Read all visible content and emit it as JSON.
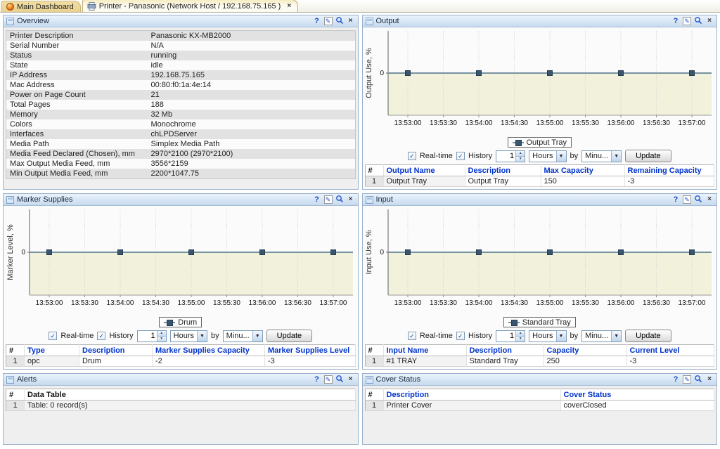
{
  "icons": {
    "help": "?",
    "edit": "✎",
    "close": "×",
    "tab_close": "×",
    "check": "✓",
    "chevron_down": "▼",
    "spinner_up": "▲",
    "spinner_down": "▼"
  },
  "colors": {
    "panel_header_top": "#eaf3fc",
    "panel_header_bottom": "#c7daee",
    "table_header_text": "#0033cc",
    "chart_fill": "#f2f1dc",
    "chart_line": "#76929f",
    "chart_marker": "#3a566f",
    "tab_active_bg": "#fdfcf4"
  },
  "tab_bar": {
    "tabs": [
      {
        "label": "Main Dashboard",
        "active": false
      },
      {
        "label": "Printer  - Panasonic (Network Host / 192.168.75.165 )",
        "active": true
      }
    ]
  },
  "chart_controls": {
    "realtime_label": "Real-time",
    "history_label": "History",
    "history_value": "1",
    "unit_value": "Hours",
    "by_label": "by",
    "interval_value": "Minu...",
    "update_label": "Update"
  },
  "panels": {
    "overview": {
      "title": "Overview",
      "rows": [
        {
          "label": "Printer Description",
          "value": "Panasonic KX-MB2000"
        },
        {
          "label": "Serial Number",
          "value": "N/A"
        },
        {
          "label": "Status",
          "value": "running"
        },
        {
          "label": "State",
          "value": "idle"
        },
        {
          "label": "IP Address",
          "value": "192.168.75.165"
        },
        {
          "label": "Mac Address",
          "value": "00:80:f0:1a:4e:14"
        },
        {
          "label": "Power on Page Count",
          "value": "21"
        },
        {
          "label": "Total Pages",
          "value": "188"
        },
        {
          "label": "Memory",
          "value": "32 Mb"
        },
        {
          "label": "Colors",
          "value": "Monochrome"
        },
        {
          "label": "Interfaces",
          "value": "chLPDServer"
        },
        {
          "label": "Media Path",
          "value": "Simplex Media Path"
        },
        {
          "label": "Media Feed Declared (Chosen), mm",
          "value": "2970*2100 (2970*2100)"
        },
        {
          "label": "Max Output Media Feed, mm",
          "value": "3556*2159"
        },
        {
          "label": "Min Output Media Feed, mm",
          "value": "2200*1047.75"
        }
      ]
    },
    "output": {
      "title": "Output",
      "table": {
        "headers": [
          "#",
          "Output Name",
          "Description",
          "Max Capacity",
          "Remaining Capacity"
        ],
        "rows": [
          [
            "1",
            "Output Tray",
            "Output Tray",
            "150",
            "-3"
          ]
        ]
      }
    },
    "marker_supplies": {
      "title": "Marker Supplies",
      "table": {
        "headers": [
          "#",
          "Type",
          "Description",
          "Marker Supplies Capacity",
          "Marker Supplies Level"
        ],
        "rows": [
          [
            "1",
            "opc",
            "Drum",
            "-2",
            "-3"
          ]
        ]
      }
    },
    "input": {
      "title": "Input",
      "table": {
        "headers": [
          "#",
          "Input Name",
          "Description",
          "Capacity",
          "Current Level"
        ],
        "rows": [
          [
            "1",
            "#1 TRAY",
            "Standard Tray",
            "250",
            "-3"
          ]
        ]
      }
    },
    "alerts": {
      "title": "Alerts",
      "table": {
        "headers": [
          "#",
          "Data Table"
        ],
        "rows": [
          [
            "1",
            "Table: 0 record(s)"
          ]
        ]
      }
    },
    "cover_status": {
      "title": "Cover Status",
      "table": {
        "headers": [
          "#",
          "Description",
          "Cover Status"
        ],
        "rows": [
          [
            "1",
            "Printer Cover",
            "coverClosed"
          ]
        ]
      }
    }
  },
  "chart_data": [
    {
      "type": "line",
      "panel": "Output",
      "ylabel": "Output Use, %",
      "legend": "Output Tray",
      "xticks": [
        "13:53:00",
        "13:53:30",
        "13:54:00",
        "13:54:30",
        "13:55:00",
        "13:55:30",
        "13:56:00",
        "13:56:30",
        "13:57:00"
      ],
      "yticks": [
        0
      ],
      "grid": "vertical-dotted",
      "legend_position": "bottom",
      "series": [
        {
          "name": "Output Tray",
          "x": [
            "13:53:00",
            "13:54:00",
            "13:55:00",
            "13:56:00",
            "13:57:00"
          ],
          "values": [
            0,
            0,
            0,
            0,
            0
          ]
        }
      ]
    },
    {
      "type": "line",
      "panel": "Marker Supplies",
      "ylabel": "Marker Level, %",
      "legend": "Drum",
      "xticks": [
        "13:53:00",
        "13:53:30",
        "13:54:00",
        "13:54:30",
        "13:55:00",
        "13:55:30",
        "13:56:00",
        "13:56:30",
        "13:57:00"
      ],
      "yticks": [
        0
      ],
      "grid": "vertical-dotted",
      "legend_position": "bottom",
      "series": [
        {
          "name": "Drum",
          "x": [
            "13:53:00",
            "13:54:00",
            "13:55:00",
            "13:56:00",
            "13:57:00"
          ],
          "values": [
            0,
            0,
            0,
            0,
            0
          ]
        }
      ]
    },
    {
      "type": "line",
      "panel": "Input",
      "ylabel": "Input Use, %",
      "legend": "Standard Tray",
      "xticks": [
        "13:53:00",
        "13:53:30",
        "13:54:00",
        "13:54:30",
        "13:55:00",
        "13:55:30",
        "13:56:00",
        "13:56:30",
        "13:57:00"
      ],
      "yticks": [
        0
      ],
      "grid": "vertical-dotted",
      "legend_position": "bottom",
      "series": [
        {
          "name": "Standard Tray",
          "x": [
            "13:53:00",
            "13:54:00",
            "13:55:00",
            "13:56:00",
            "13:57:00"
          ],
          "values": [
            0,
            0,
            0,
            0,
            0
          ]
        }
      ]
    }
  ]
}
